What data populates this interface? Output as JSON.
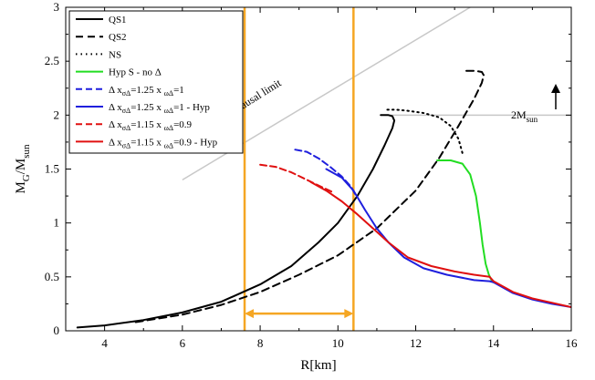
{
  "chart_data": {
    "type": "line",
    "xlabel": "R[km]",
    "ylabel": "M_G/M_sun",
    "xlim": [
      3,
      16
    ],
    "ylim": [
      0,
      3
    ],
    "xticks": [
      4,
      6,
      8,
      10,
      12,
      14,
      16
    ],
    "yticks": [
      0,
      0.5,
      1,
      1.5,
      2,
      2.5,
      3
    ],
    "yticklabels": [
      "0",
      "0.5",
      "1",
      "1.5",
      "2",
      "2.5",
      "3"
    ],
    "legend_position": "top-left",
    "series": [
      {
        "name": "QS1",
        "color": "#000000",
        "dash": "solid",
        "x": [
          3.3,
          4,
          5,
          6,
          7,
          8,
          8.8,
          9.5,
          10,
          10.5,
          10.9,
          11.2,
          11.4,
          11.45,
          11.4,
          11.3,
          11.1
        ],
        "y": [
          0.03,
          0.05,
          0.1,
          0.17,
          0.27,
          0.43,
          0.6,
          0.82,
          1.0,
          1.25,
          1.5,
          1.72,
          1.88,
          1.95,
          1.99,
          2.0,
          2.0
        ]
      },
      {
        "name": "QS2",
        "color": "#000000",
        "dash": "8,5",
        "x": [
          4.8,
          6,
          7,
          8,
          9,
          10,
          11,
          12,
          12.6,
          13.1,
          13.5,
          13.7,
          13.75,
          13.7,
          13.55,
          13.3
        ],
        "y": [
          0.08,
          0.15,
          0.24,
          0.36,
          0.52,
          0.7,
          0.95,
          1.3,
          1.6,
          1.9,
          2.15,
          2.3,
          2.37,
          2.4,
          2.41,
          2.41
        ]
      },
      {
        "name": "NS",
        "color": "#000000",
        "dash": "1.5,4",
        "x": [
          13.2,
          13.1,
          12.9,
          12.6,
          12.2,
          11.8,
          11.5,
          11.2
        ],
        "y": [
          1.65,
          1.78,
          1.9,
          1.98,
          2.02,
          2.04,
          2.05,
          2.05
        ]
      },
      {
        "name": "Hyp S - no Δ",
        "color": "#22dd22",
        "dash": "solid",
        "x": [
          12.55,
          12.9,
          13.2,
          13.4,
          13.55,
          13.65,
          13.72,
          13.8,
          13.88,
          13.95,
          14.0
        ],
        "y": [
          1.58,
          1.58,
          1.55,
          1.45,
          1.25,
          1.0,
          0.8,
          0.62,
          0.52,
          0.47,
          0.45
        ]
      },
      {
        "name": "Δ  xσΔ=1.25 x ωΔ=1",
        "color": "#1f1fdd",
        "dash": "7,4",
        "x": [
          8.9,
          9.2,
          9.5,
          9.8,
          10.1,
          10.35,
          10.45
        ],
        "y": [
          1.68,
          1.66,
          1.6,
          1.52,
          1.43,
          1.33,
          1.26
        ]
      },
      {
        "name": "Δ  xσΔ=1.25 x ωΔ=1 - Hyp",
        "color": "#1f1fdd",
        "dash": "solid",
        "x": [
          9.7,
          10.1,
          10.4,
          10.7,
          11.0,
          11.3,
          11.7,
          12.2,
          12.8,
          13.5,
          13.9,
          14.0,
          14.5,
          15,
          15.5,
          16
        ],
        "y": [
          1.5,
          1.42,
          1.3,
          1.12,
          0.95,
          0.82,
          0.68,
          0.58,
          0.52,
          0.47,
          0.46,
          0.45,
          0.35,
          0.29,
          0.25,
          0.22
        ]
      },
      {
        "name": "Δ  xσΔ=1.15 x ωΔ=0.9",
        "color": "#e01010",
        "dash": "7,4",
        "x": [
          8.0,
          8.4,
          8.8,
          9.2,
          9.6,
          9.9
        ],
        "y": [
          1.54,
          1.52,
          1.47,
          1.4,
          1.33,
          1.28
        ]
      },
      {
        "name": "Δ  xσΔ=1.15 x ωΔ=0.9 - Hyp",
        "color": "#e01010",
        "dash": "solid",
        "x": [
          9.3,
          9.7,
          10.1,
          10.5,
          10.9,
          11.3,
          11.8,
          12.4,
          13.0,
          13.5,
          13.9,
          14.0,
          14.5,
          15,
          15.5,
          16
        ],
        "y": [
          1.38,
          1.3,
          1.2,
          1.08,
          0.95,
          0.82,
          0.68,
          0.6,
          0.55,
          0.52,
          0.5,
          0.46,
          0.36,
          0.3,
          0.26,
          0.22
        ]
      }
    ],
    "reference_lines": {
      "causal_limit": {
        "label": "Causal limit",
        "color": "#c8c8c8",
        "x": [
          6,
          13.4
        ],
        "y": [
          1.4,
          3
        ]
      },
      "two_msun": {
        "label": "2M_sun",
        "color": "#c8c8c8",
        "x": [
          11.2,
          16
        ],
        "y": [
          2.0,
          2.0
        ]
      },
      "radius_bounds": {
        "color": "#f5a623",
        "x_values": [
          7.6,
          10.4
        ],
        "arrow_y": 0.16
      }
    }
  }
}
